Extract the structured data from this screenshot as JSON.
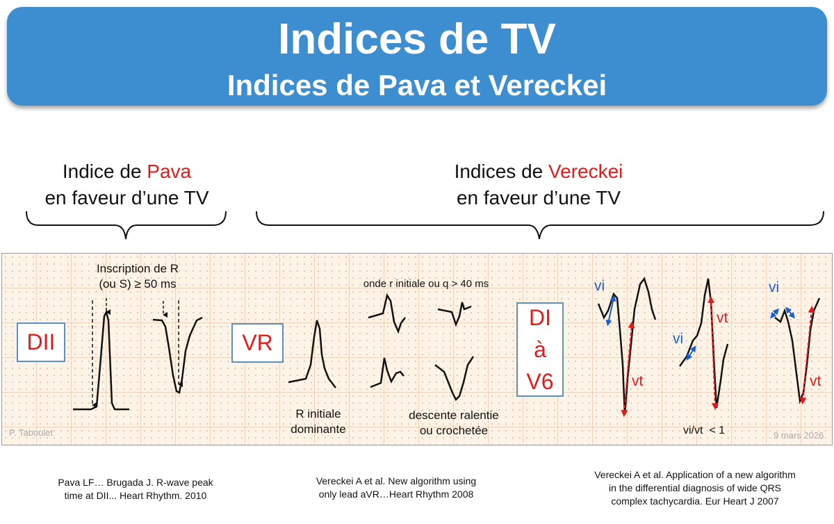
{
  "banner": {
    "title": "Indices de TV",
    "subtitle": "Indices de Pava et Vereckei"
  },
  "headings": {
    "pava": {
      "line1_prefix": "Indice de ",
      "line1_name": "Pava",
      "line2": "en faveur d’une TV"
    },
    "vereckei": {
      "line1_prefix": "Indices de ",
      "line1_name": "Vereckei",
      "line2": "en faveur d’une TV"
    }
  },
  "ecg": {
    "leads": {
      "dii": "DII",
      "vr": "VR",
      "di": "DI",
      "a": "à",
      "v6": "V6"
    },
    "inscription_line1": "Inscription de R",
    "inscription_line2": "(ou S) ≥ 50 ms",
    "onde_r": "onde r initiale ou q > 40 ms",
    "r_initiale_line1": "R initiale",
    "r_initiale_line2": "dominante",
    "descente_line1": "descente ralentie",
    "descente_line2": "ou crochetée",
    "vi": "vi",
    "vt": "vt",
    "ratio": "vi/vt  < 1",
    "author": "P. Taboulet",
    "date": "9 mars 2026"
  },
  "references": {
    "pava_line1": "Pava LF… Brugada J. R-wave peak",
    "pava_line2": "time at DII... Heart Rhythm. 2010",
    "avr_line1": "Vereckei A et al. New algorithm using",
    "avr_line2": "only lead aVR…Heart Rhythm 2008",
    "eur_line1": "Vereckei A et al. Application of a new algorithm",
    "eur_line2": "in the differential diagnosis of  wide QRS",
    "eur_line3": "complex tachycardia. Eur Heart J 2007"
  },
  "colors": {
    "banner": "#3d8ed0",
    "accent_red": "#e31b1b",
    "vi_blue": "#1a5fd0",
    "box_border": "#5c8fc4"
  }
}
